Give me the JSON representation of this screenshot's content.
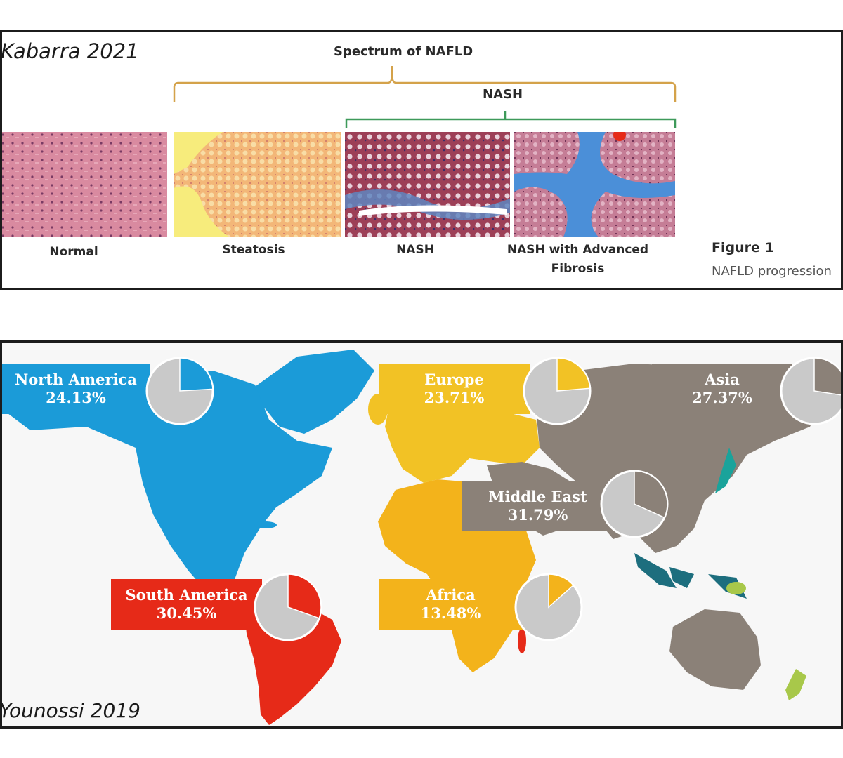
{
  "top_figure": {
    "citation": "Kabarra 2021",
    "spectrum_label": "Spectrum of NAFLD",
    "nash_label": "NASH",
    "stages": [
      {
        "label": "Normal"
      },
      {
        "label": "Steatosis"
      },
      {
        "label": "NASH"
      },
      {
        "label": "NASH with Advanced Fibrosis"
      }
    ],
    "figure_title": "Figure 1",
    "figure_caption": "NAFLD progression"
  },
  "map_figure": {
    "citation": "Younossi 2019",
    "regions": [
      {
        "name": "North America",
        "value": "24.13%",
        "fraction": 0.2413,
        "color": "#1b9bd8"
      },
      {
        "name": "Europe",
        "value": "23.71%",
        "fraction": 0.2371,
        "color": "#f2c225"
      },
      {
        "name": "Asia",
        "value": "27.37%",
        "fraction": 0.2737,
        "color": "#8b8178"
      },
      {
        "name": "Middle East",
        "value": "31.79%",
        "fraction": 0.3179,
        "color": "#8b8178"
      },
      {
        "name": "South America",
        "value": "30.45%",
        "fraction": 0.3045,
        "color": "#e62a18"
      },
      {
        "name": "Africa",
        "value": "13.48%",
        "fraction": 0.1348,
        "color": "#f3b31b"
      }
    ],
    "pie_remainder_color": "#c9c9c9"
  }
}
